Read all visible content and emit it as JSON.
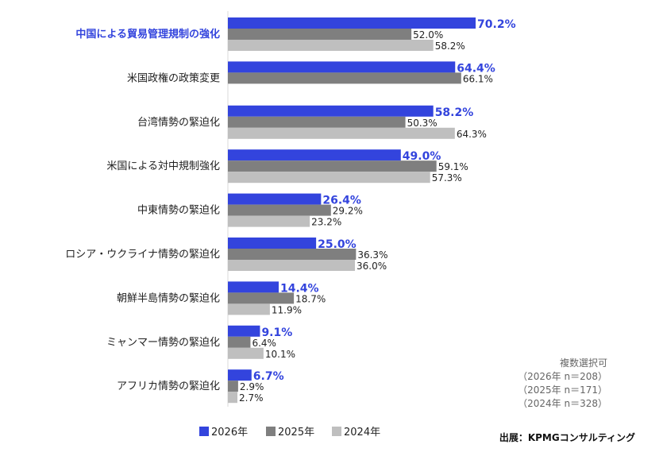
{
  "chart_data": {
    "type": "bar",
    "orientation": "horizontal",
    "categories": [
      "中国による貿易管理規制の強化",
      "米国政権の政策変更",
      "台湾情勢の緊迫化",
      "米国による対中規制強化",
      "中東情勢の緊迫化",
      "ロシア・ウクライナ情勢の緊迫化",
      "朝鮮半島情勢の緊迫化",
      "ミャンマー情勢の緊迫化",
      "アフリカ情勢の緊迫化"
    ],
    "highlight_category": 0,
    "series": [
      {
        "name": "2026年",
        "color": "#3344dd",
        "values": [
          70.2,
          64.4,
          58.2,
          49.0,
          26.4,
          25.0,
          14.4,
          9.1,
          6.7
        ]
      },
      {
        "name": "2025年",
        "color": "#7f7f7f",
        "values": [
          52.0,
          66.1,
          50.3,
          59.1,
          29.2,
          36.3,
          18.7,
          6.4,
          2.9
        ]
      },
      {
        "name": "2024年",
        "color": "#bfbfbf",
        "values": [
          58.2,
          null,
          64.3,
          57.3,
          23.2,
          36.0,
          11.9,
          10.1,
          2.7
        ]
      }
    ],
    "unit": "%",
    "xlim": [
      0,
      100
    ],
    "grid": false,
    "legend_position": "bottom",
    "notes": [
      "複数選択可",
      "（2026年 n＝208）",
      "（2025年 n＝171）",
      "（2024年 n＝328）"
    ],
    "source": "出展：KPMGコンサルティング"
  }
}
